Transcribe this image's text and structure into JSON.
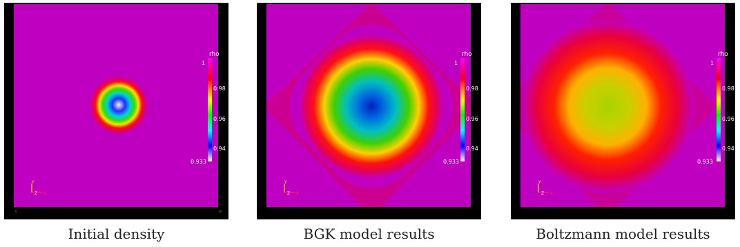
{
  "colorbar": {
    "title": "rho",
    "max_label": "1",
    "labels": [
      "0.98",
      "0.96",
      "0.94"
    ],
    "min_label": "0.933"
  },
  "colormap": [
    "#ffffff",
    "#0000ff",
    "#00ffff",
    "#00ff00",
    "#ffff00",
    "#ff0000",
    "#ff00ff"
  ],
  "background_color": "#c000c0",
  "orientation_axes": {
    "y": "Y",
    "z": "Z",
    "x": "X"
  },
  "panels": [
    {
      "caption": "Initial density"
    },
    {
      "caption": "BGK model results"
    },
    {
      "caption": "Boltzmann model results"
    }
  ]
}
